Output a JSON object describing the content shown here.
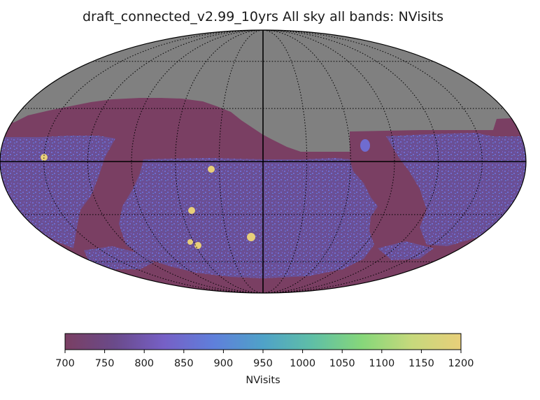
{
  "chart_data": {
    "type": "heatmap",
    "projection": "mollweide",
    "title": "draft_connected_v2.99_10yrs All sky all bands: NVisits",
    "colorbar": {
      "label": "NVisits",
      "range": [
        700,
        1200
      ],
      "ticks": [
        "700",
        "750",
        "800",
        "850",
        "900",
        "950",
        "1000",
        "1050",
        "1100",
        "1150",
        "1200"
      ],
      "colormap": [
        "#7a3f63",
        "#6a4a8a",
        "#7660c6",
        "#5f7fdb",
        "#4fa2c8",
        "#5fbfa6",
        "#86d77a",
        "#c6d97c",
        "#e8cf7a"
      ]
    },
    "grid": true,
    "colors": {
      "no_data": "#808080",
      "low_coverage": "#7a3f63",
      "survey_base": "#6a4f95",
      "survey_speckle": "#6f6cd0",
      "hotspot": "#e8cf7a",
      "grid_line": "#000000"
    }
  }
}
